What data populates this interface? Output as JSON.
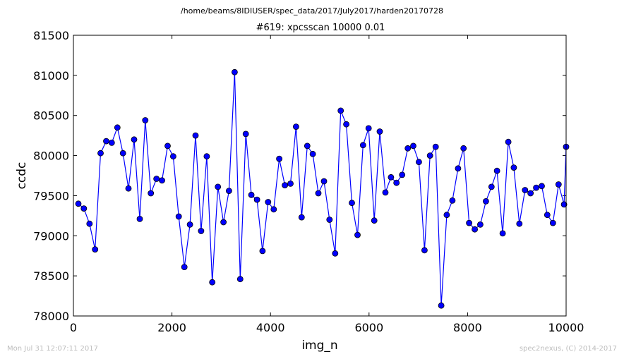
{
  "page": {
    "suptitle": "/home/beams/8IDIUSER/spec_data/2017/July2017/harden20170728",
    "footer_left": "Mon Jul 31 12:07:11 2017",
    "footer_right": "spec2nexus, (C) 2014-2017"
  },
  "chart_data": {
    "type": "line",
    "title": "#619: xpcsscan 10000 0.01",
    "xlabel": "img_n",
    "ylabel": "ccdc",
    "xlim": [
      0,
      10000
    ],
    "ylim": [
      78000,
      81500
    ],
    "xticks": [
      0,
      2000,
      4000,
      6000,
      8000,
      10000
    ],
    "yticks": [
      78000,
      78500,
      79000,
      79500,
      80000,
      80500,
      81000,
      81500
    ],
    "grid": false,
    "colors": {
      "line": "#0000ff",
      "marker_fill": "#0000ff",
      "marker_edge": "#000000"
    },
    "series": [
      {
        "x": [
          100,
          212,
          326,
          440,
          552,
          666,
          778,
          892,
          1006,
          1118,
          1232,
          1346,
          1458,
          1572,
          1686,
          1798,
          1912,
          2026,
          2138,
          2252,
          2366,
          2478,
          2592,
          2706,
          2818,
          2932,
          3046,
          3158,
          3272,
          3386,
          3498,
          3612,
          3726,
          3838,
          3952,
          4066,
          4178,
          4292,
          4406,
          4518,
          4632,
          4746,
          4858,
          4972,
          5086,
          5198,
          5312,
          5426,
          5538,
          5652,
          5766,
          5878,
          5992,
          6106,
          6218,
          6332,
          6446,
          6558,
          6672,
          6786,
          6898,
          7012,
          7126,
          7238,
          7352,
          7466,
          7578,
          7692,
          7806,
          7918,
          8032,
          8146,
          8258,
          8372,
          8486,
          8598,
          8712,
          8826,
          8938,
          9052,
          9166,
          9278,
          9392,
          9506,
          9618,
          9732,
          9846,
          9958,
          10000
        ],
        "values": [
          79400,
          79340,
          79150,
          78830,
          80030,
          80180,
          80160,
          80350,
          80030,
          79590,
          80200,
          79210,
          80440,
          79530,
          79710,
          79690,
          80120,
          79990,
          79240,
          78610,
          79140,
          80250,
          79060,
          79990,
          78420,
          79610,
          79170,
          79560,
          81040,
          78460,
          80270,
          79510,
          79450,
          78810,
          79420,
          79330,
          79960,
          79630,
          79650,
          80360,
          79230,
          80120,
          80020,
          79530,
          79680,
          79200,
          78780,
          80560,
          80390,
          79410,
          79010,
          80130,
          80340,
          79190,
          80300,
          79540,
          79730,
          79660,
          79760,
          80090,
          80120,
          79920,
          78820,
          80000,
          80110,
          78130,
          79260,
          79440,
          79840,
          80090,
          79160,
          79080,
          79140,
          79430,
          79610,
          79810,
          79030,
          80170,
          79850,
          79150,
          79570,
          79530,
          79600,
          79620,
          79260,
          79160,
          79640,
          79390,
          80110
        ]
      }
    ]
  }
}
